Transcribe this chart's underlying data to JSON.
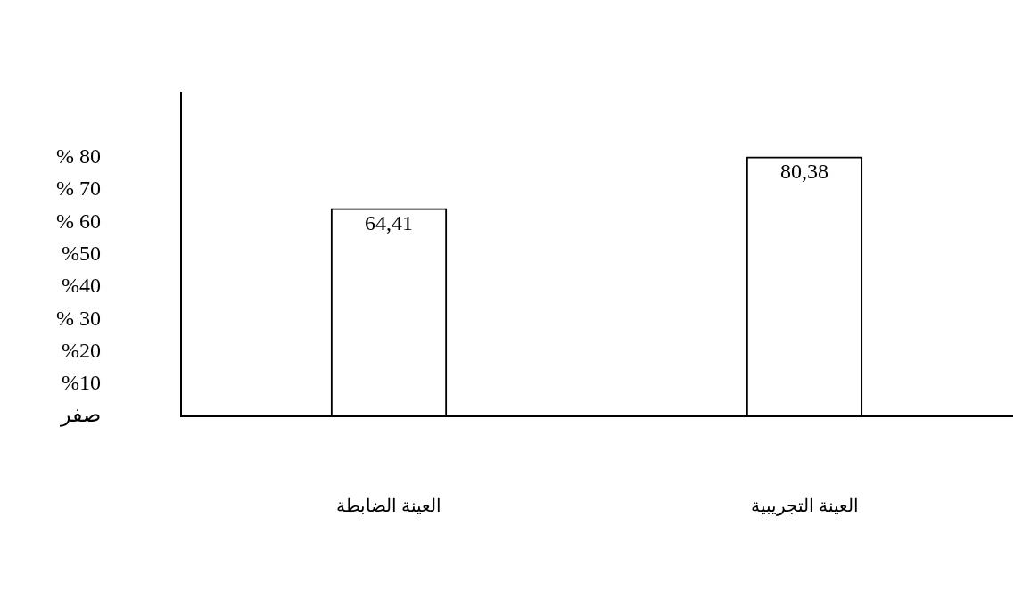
{
  "chart_data": {
    "type": "bar",
    "categories": [
      "العينة الضابطة",
      "العينة التجريبية"
    ],
    "series": [
      {
        "color": "#000000",
        "values": [
          64.41,
          80.38
        ]
      }
    ],
    "value_labels": [
      "64,41",
      "80,38"
    ],
    "ylim": [
      0,
      100
    ],
    "yticks": [
      {
        "value": 0,
        "label": "صفر"
      },
      {
        "value": 10,
        "label": "%10"
      },
      {
        "value": 20,
        "label": "%20"
      },
      {
        "value": 30,
        "label": "% 30"
      },
      {
        "value": 40,
        "label": "%40"
      },
      {
        "value": 50,
        "label": "%50"
      },
      {
        "value": 60,
        "label": "% 60"
      },
      {
        "value": 70,
        "label": "% 70"
      },
      {
        "value": 80,
        "label": "% 80"
      }
    ],
    "grid": false,
    "legend": false
  }
}
